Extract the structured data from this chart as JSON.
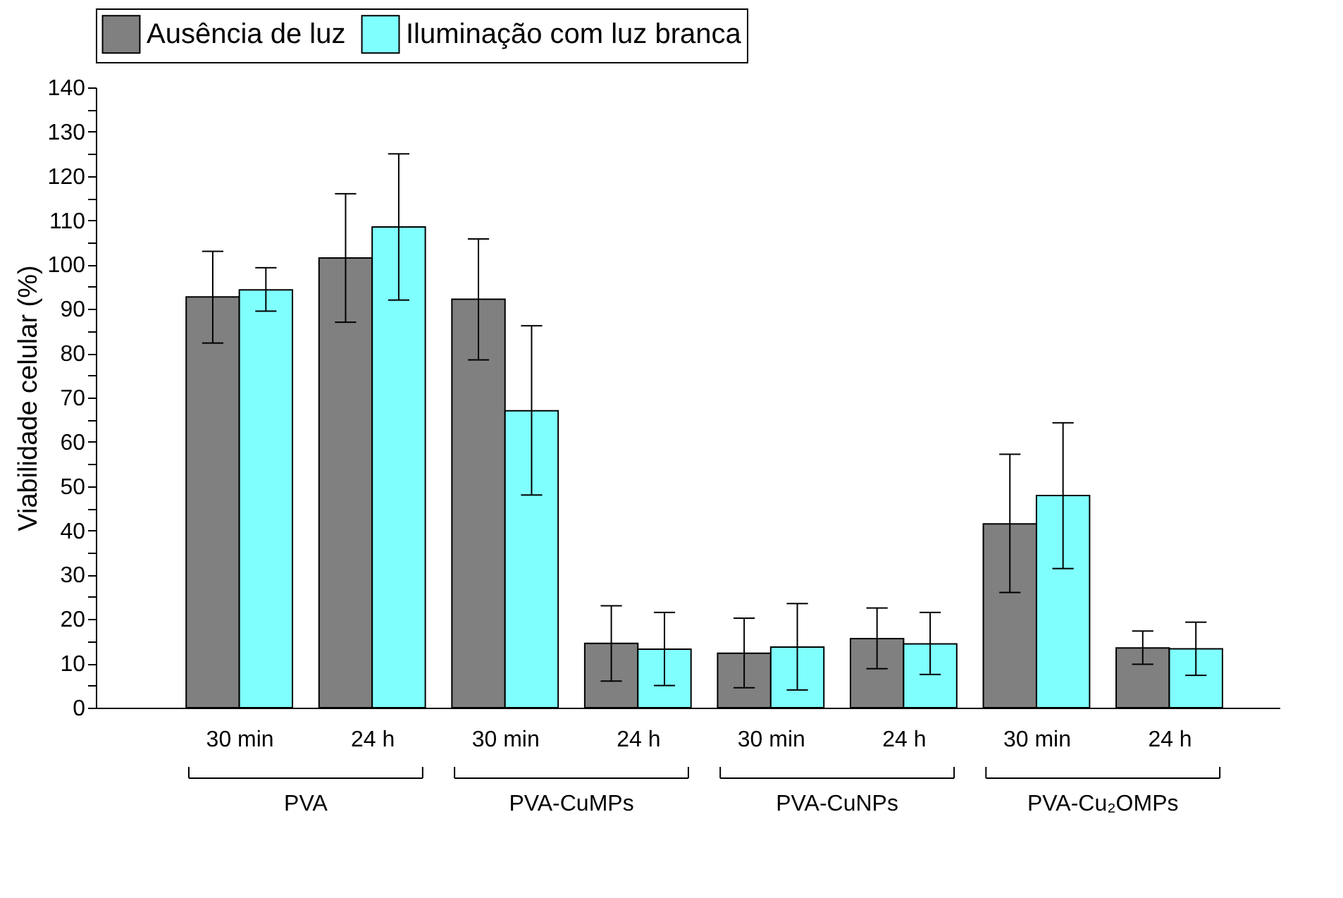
{
  "chart_data": {
    "type": "bar",
    "ylabel": "Viabilidade celular (%)",
    "categories": [
      "30 min",
      "24 h",
      "30 min",
      "24 h",
      "30 min",
      "24 h",
      "30 min",
      "24 h"
    ],
    "series": [
      {
        "name": "Ausência de luz",
        "color": "#808080",
        "values": [
          92.7,
          101.5,
          92.2,
          14.5,
          12.3,
          15.6,
          41.5,
          13.5
        ],
        "errors": [
          [
            82.3,
            103
          ],
          [
            87,
            116
          ],
          [
            78.5,
            105.8
          ],
          [
            6,
            23
          ],
          [
            4.5,
            20.2
          ],
          [
            8.8,
            22.5
          ],
          [
            26,
            57.2
          ],
          [
            9.8,
            17.3
          ]
        ]
      },
      {
        "name": "Iluminação com luz branca",
        "color": "#80ffff",
        "values": [
          94.3,
          108.5,
          67,
          13.2,
          13.7,
          14.4,
          47.9,
          13.3
        ],
        "errors": [
          [
            89.5,
            99.3
          ],
          [
            92,
            125
          ],
          [
            48,
            86.2
          ],
          [
            5,
            21.5
          ],
          [
            4,
            23.5
          ],
          [
            7.5,
            21.5
          ],
          [
            31.4,
            64.3
          ],
          [
            7.3,
            19.3
          ]
        ]
      }
    ],
    "annotations": [
      "PVA",
      "PVA-CuMPs",
      "PVA-CuNPs",
      "PVA-Cu₂OMPs"
    ],
    "ylim": [
      0,
      140
    ],
    "yticks": [
      0,
      {
        "value": 5,
        "label": null
      },
      10,
      {
        "value": 15,
        "label": null
      },
      20,
      {
        "value": 25,
        "label": null
      },
      30,
      {
        "value": 35,
        "label": null
      },
      40,
      {
        "value": 45,
        "label": null
      },
      50,
      {
        "value": 55,
        "label": null
      },
      60,
      {
        "value": 65,
        "label": null
      },
      70,
      {
        "value": 75,
        "label": null
      },
      80,
      {
        "value": 85,
        "label": null
      },
      90,
      {
        "value": 95,
        "label": null
      },
      100,
      {
        "value": 105,
        "label": null
      },
      110,
      {
        "value": 115,
        "label": null
      },
      120,
      {
        "value": 125,
        "label": null
      },
      130,
      {
        "value": 135,
        "label": null
      },
      140
    ],
    "grid": false,
    "legend": "top"
  }
}
